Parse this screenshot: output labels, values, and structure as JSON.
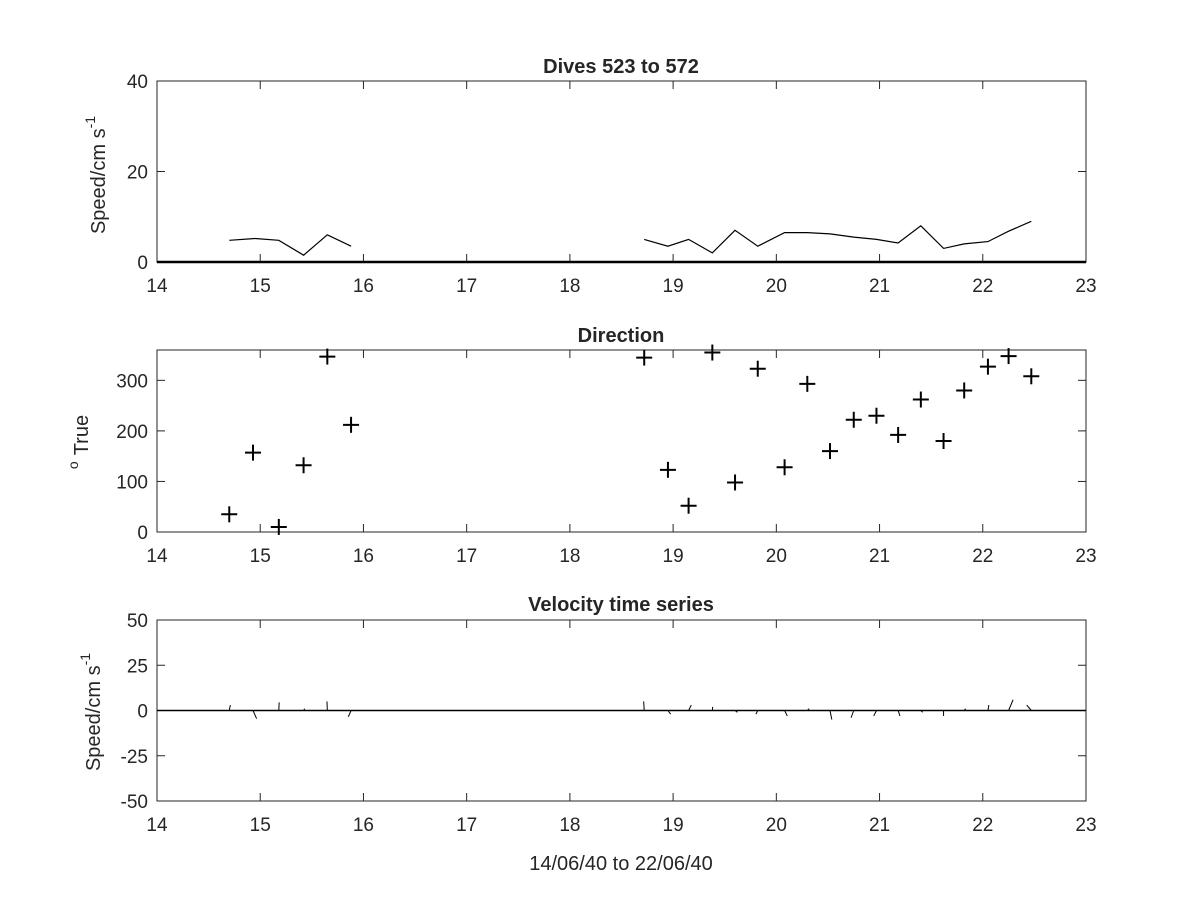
{
  "chart_data": [
    {
      "type": "line",
      "title": "Dives 523 to 572",
      "ylabel": "Speed/cm s",
      "ylabel_superscript": "-1",
      "xlim": [
        14,
        23
      ],
      "ylim": [
        0,
        40
      ],
      "xticks": [
        "14",
        "15",
        "16",
        "17",
        "18",
        "19",
        "20",
        "21",
        "22",
        "23"
      ],
      "yticks": [
        "0",
        "20",
        "40"
      ],
      "series": [
        {
          "segments": [
            [
              [
                14.7,
                4.8
              ],
              [
                14.95,
                5.2
              ],
              [
                15.18,
                4.8
              ],
              [
                15.42,
                1.5
              ],
              [
                15.65,
                6.0
              ],
              [
                15.88,
                3.5
              ]
            ],
            [
              [
                18.72,
                5.0
              ],
              [
                18.95,
                3.5
              ],
              [
                19.15,
                5.0
              ],
              [
                19.38,
                2.0
              ],
              [
                19.6,
                7.0
              ],
              [
                19.82,
                3.5
              ],
              [
                20.08,
                6.5
              ],
              [
                20.3,
                6.5
              ],
              [
                20.52,
                6.2
              ],
              [
                20.75,
                5.5
              ],
              [
                20.97,
                5.0
              ],
              [
                21.18,
                4.2
              ],
              [
                21.4,
                8.0
              ],
              [
                21.62,
                3.0
              ],
              [
                21.82,
                4.0
              ],
              [
                22.05,
                4.5
              ],
              [
                22.25,
                6.8
              ],
              [
                22.47,
                9.0
              ]
            ]
          ]
        }
      ]
    },
    {
      "type": "scatter",
      "title": "Direction",
      "ylabel": "True",
      "ylabel_superscript": "o",
      "xlim": [
        14,
        23
      ],
      "ylim": [
        0,
        360
      ],
      "xticks": [
        "14",
        "15",
        "16",
        "17",
        "18",
        "19",
        "20",
        "21",
        "22",
        "23"
      ],
      "yticks": [
        "0",
        "100",
        "200",
        "300"
      ],
      "marker": "+",
      "points": [
        [
          14.7,
          35
        ],
        [
          14.93,
          157
        ],
        [
          15.18,
          10
        ],
        [
          15.42,
          132
        ],
        [
          15.65,
          347
        ],
        [
          15.88,
          212
        ],
        [
          18.72,
          345
        ],
        [
          18.95,
          123
        ],
        [
          19.15,
          52
        ],
        [
          19.38,
          355
        ],
        [
          19.6,
          98
        ],
        [
          19.82,
          323
        ],
        [
          20.08,
          128
        ],
        [
          20.3,
          293
        ],
        [
          20.52,
          160
        ],
        [
          20.75,
          222
        ],
        [
          20.97,
          230
        ],
        [
          21.18,
          192
        ],
        [
          21.4,
          262
        ],
        [
          21.62,
          180
        ],
        [
          21.82,
          280
        ],
        [
          22.05,
          327
        ],
        [
          22.25,
          348
        ],
        [
          22.47,
          308
        ]
      ]
    },
    {
      "type": "line",
      "title": "Velocity time series",
      "ylabel": "Speed/cm s",
      "ylabel_superscript": "-1",
      "xlabel": "14/06/40 to 22/06/40",
      "xlim": [
        14,
        23
      ],
      "ylim": [
        -50,
        50
      ],
      "xticks": [
        "14",
        "15",
        "16",
        "17",
        "18",
        "19",
        "20",
        "21",
        "22",
        "23"
      ],
      "yticks": [
        "-50",
        "-25",
        "0",
        "25",
        "50"
      ],
      "sticks": [
        [
          14.7,
          0.6,
          3
        ],
        [
          14.93,
          2.0,
          -4.5
        ],
        [
          15.18,
          0.2,
          4.5
        ],
        [
          15.42,
          0.6,
          1
        ],
        [
          15.65,
          -0.2,
          5
        ],
        [
          15.88,
          -1.5,
          -3.5
        ],
        [
          18.72,
          -0.3,
          5
        ],
        [
          18.95,
          1.5,
          -2
        ],
        [
          19.15,
          1.5,
          3
        ],
        [
          19.38,
          0.2,
          2
        ],
        [
          19.6,
          1.3,
          -1
        ],
        [
          19.82,
          -1.0,
          -2
        ],
        [
          20.08,
          1.5,
          -3
        ],
        [
          20.3,
          1.0,
          1
        ],
        [
          20.52,
          1.0,
          -5
        ],
        [
          20.75,
          -1.5,
          -4
        ],
        [
          20.97,
          -1.5,
          -3
        ],
        [
          21.18,
          1.0,
          -3
        ],
        [
          21.4,
          1.0,
          -1
        ],
        [
          21.62,
          0.0,
          -3
        ],
        [
          21.82,
          0.8,
          1
        ],
        [
          22.05,
          0.5,
          3
        ],
        [
          22.25,
          2.5,
          6
        ],
        [
          22.47,
          -2.5,
          3
        ]
      ]
    }
  ]
}
